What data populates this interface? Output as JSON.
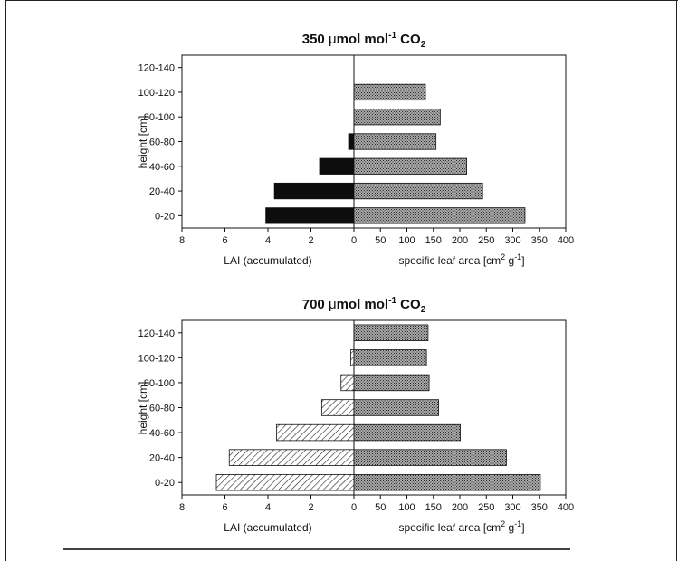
{
  "chart_data": [
    {
      "type": "bar",
      "layout": "back-to-back horizontal bars",
      "title": {
        "prefix": "350 ",
        "mu": "μ",
        "unit": "mol mol",
        "exp": "-1",
        "gas": " CO",
        "sub": "2"
      },
      "ylabel": "height [cm]",
      "categories": [
        "120-140",
        "100-120",
        "80-100",
        "60-80",
        "40-60",
        "20-40",
        "0-20"
      ],
      "left": {
        "xlabel": "LAI (accumulated)",
        "xlim": [
          8,
          0
        ],
        "ticks": [
          "8",
          "6",
          "4",
          "2",
          "0"
        ],
        "values": [
          0,
          0,
          0,
          0.25,
          1.6,
          3.7,
          4.1
        ],
        "fill": "solid-black"
      },
      "right": {
        "xlabel": {
          "text": "specific leaf area [cm",
          "exp1": "2",
          "mid": " g",
          "exp2": "-1",
          "end": "]"
        },
        "xlim": [
          0,
          400
        ],
        "ticks": [
          "0",
          "50",
          "100",
          "150",
          "200",
          "250",
          "300",
          "350",
          "400"
        ],
        "values": [
          0,
          135,
          163,
          155,
          213,
          243,
          323
        ],
        "fill": "stipple-gray"
      }
    },
    {
      "type": "bar",
      "layout": "back-to-back horizontal bars",
      "title": {
        "prefix": "700 ",
        "mu": "μ",
        "unit": "mol mol",
        "exp": "-1",
        "gas": " CO",
        "sub": "2"
      },
      "ylabel": "height [cm]",
      "categories": [
        "120-140",
        "100-120",
        "80-100",
        "60-80",
        "40-60",
        "20-40",
        "0-20"
      ],
      "left": {
        "xlabel": "LAI (accumulated)",
        "xlim": [
          8,
          0
        ],
        "ticks": [
          "8",
          "6",
          "4",
          "2",
          "0"
        ],
        "values": [
          0,
          0.15,
          0.6,
          1.5,
          3.6,
          5.8,
          6.4
        ],
        "fill": "hatched"
      },
      "right": {
        "xlabel": {
          "text": "specific leaf area [cm",
          "exp1": "2",
          "mid": " g",
          "exp2": "-1",
          "end": "]"
        },
        "xlim": [
          0,
          400
        ],
        "ticks": [
          "0",
          "50",
          "100",
          "150",
          "200",
          "250",
          "300",
          "350",
          "400"
        ],
        "values": [
          140,
          137,
          142,
          160,
          201,
          288,
          352
        ],
        "fill": "stipple-gray"
      }
    }
  ],
  "colors": {
    "ink": "#111111",
    "black_bar": "#0d0d0d",
    "stipple_bg": "#a9a9a9",
    "stipple_dot": "#2a2a2a",
    "hatch": "#222222"
  }
}
